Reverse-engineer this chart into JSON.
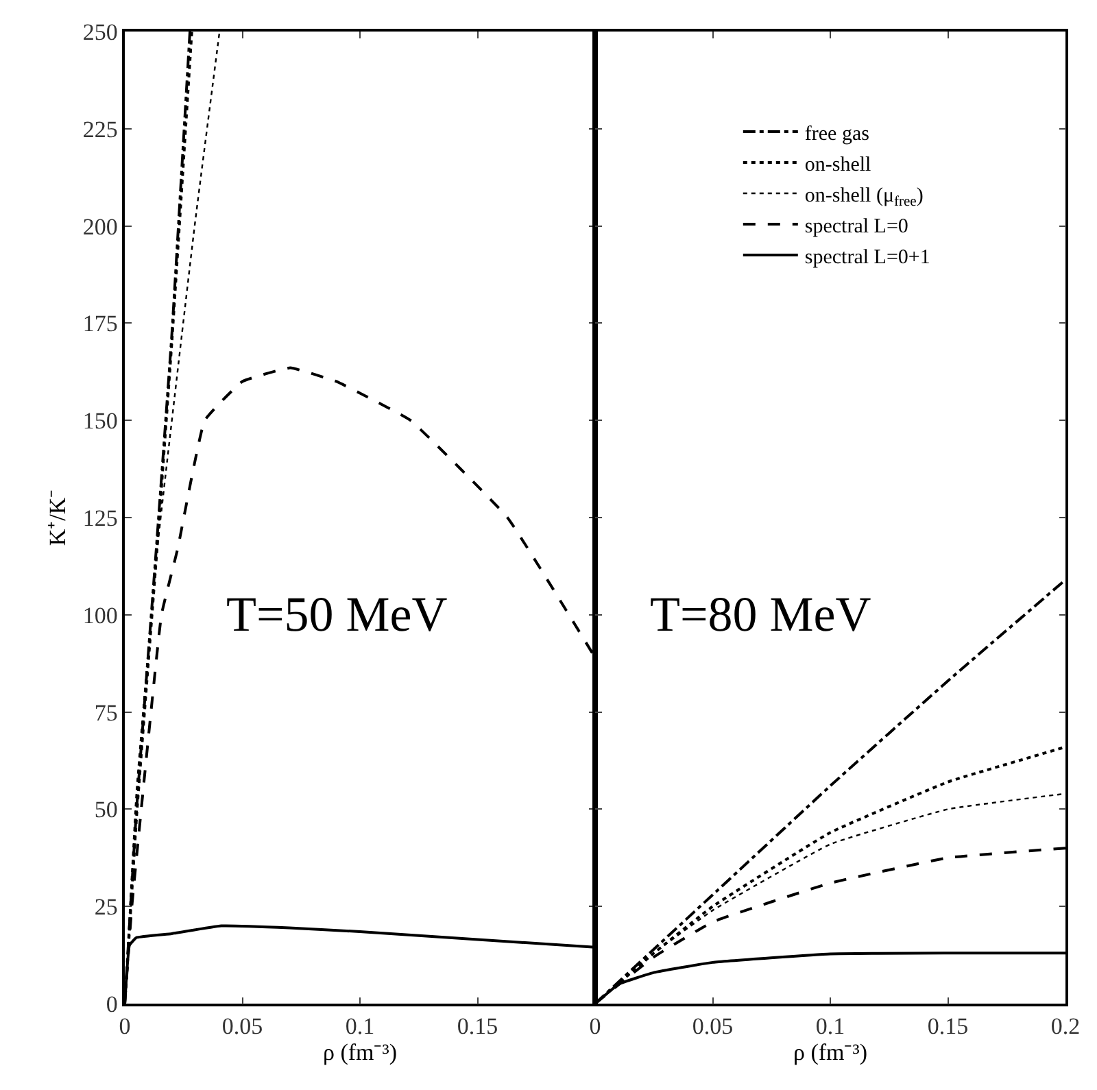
{
  "chart_data": [
    {
      "type": "line",
      "xlabel": "ρ (fm⁻³)",
      "ylabel": "K⁺/K⁻",
      "annotations": [
        "T=50 MeV"
      ],
      "xlim": [
        0,
        0.2
      ],
      "ylim": [
        0,
        250
      ],
      "xticks": [
        0,
        0.05,
        0.1,
        0.15
      ],
      "yticks": [
        0,
        25,
        50,
        75,
        100,
        125,
        150,
        175,
        200,
        225,
        250
      ],
      "series": [
        {
          "color": "#000000",
          "line_style": "dashdot",
          "x": [
            0,
            0.005,
            0.0134,
            0.02,
            0.0277
          ],
          "values": [
            0,
            50,
            117,
            172,
            250
          ]
        },
        {
          "color": "#000000",
          "line_style": "dotted",
          "x": [
            0.0005,
            0.005,
            0.0136,
            0.02,
            0.0285
          ],
          "values": [
            4,
            48,
            116,
            170,
            250
          ]
        },
        {
          "color": "#000000",
          "line_style": "dotted",
          "x": [
            0,
            0.005,
            0.0138,
            0.0297,
            0.0403
          ],
          "values": [
            0,
            55,
            117,
            200,
            250
          ]
        },
        {
          "color": "#000000",
          "line_style": "dashed",
          "x": [
            0,
            0.003,
            0.007,
            0.0156,
            0.0225,
            0.034,
            0.05,
            0.0704,
            0.09,
            0.1,
            0.1215,
            0.1627,
            0.2
          ],
          "values": [
            0,
            25,
            50,
            100,
            117,
            150,
            160,
            163.5,
            160,
            157,
            150,
            125,
            89
          ]
        },
        {
          "color": "#000000",
          "line_style": "solid",
          "x": [
            0,
            0.002,
            0.005,
            0.02,
            0.041,
            0.07,
            0.1,
            0.15,
            0.2
          ],
          "values": [
            0,
            15,
            17,
            18,
            20,
            19.5,
            18.5,
            16.5,
            14.5
          ]
        }
      ]
    },
    {
      "type": "line",
      "xlabel": "ρ (fm⁻³)",
      "annotations": [
        "T=80 MeV"
      ],
      "xlim": [
        0,
        0.2
      ],
      "ylim": [
        0,
        250
      ],
      "xticks": [
        0,
        0.05,
        0.1,
        0.15,
        0.2
      ],
      "yticks": [
        0,
        25,
        50,
        75,
        100,
        125,
        150,
        175,
        200,
        225,
        250
      ],
      "tick_labels": "x",
      "legend": "top",
      "series": [
        {
          "name": "free gas",
          "color": "#000000",
          "line_style": "dashdot",
          "x": [
            0,
            0.05,
            0.1,
            0.15,
            0.2
          ],
          "values": [
            0,
            28,
            56,
            83,
            109
          ]
        },
        {
          "name": "on-shell",
          "color": "#000000",
          "line_style": "dotted",
          "x": [
            0,
            0.025,
            0.05,
            0.1,
            0.15,
            0.2
          ],
          "values": [
            0,
            13,
            25,
            44,
            57,
            66
          ]
        },
        {
          "name": "on-shell (μ$_{free}$)",
          "color": "#000000",
          "line_style": "dotted",
          "x": [
            0,
            0.025,
            0.05,
            0.1,
            0.15,
            0.2
          ],
          "values": [
            0,
            13,
            24,
            41,
            50,
            54
          ]
        },
        {
          "name": "spectral L=0",
          "color": "#000000",
          "line_style": "dashed",
          "x": [
            0,
            0.025,
            0.05,
            0.1,
            0.15,
            0.2
          ],
          "values": [
            0,
            12,
            21,
            31,
            37.5,
            40
          ]
        },
        {
          "name": "spectral L=0+1",
          "color": "#000000",
          "line_style": "solid",
          "x": [
            0,
            0.01,
            0.025,
            0.05,
            0.1,
            0.15,
            0.2
          ],
          "values": [
            0,
            5,
            8,
            10.6,
            12.8,
            13,
            13
          ]
        }
      ]
    }
  ]
}
